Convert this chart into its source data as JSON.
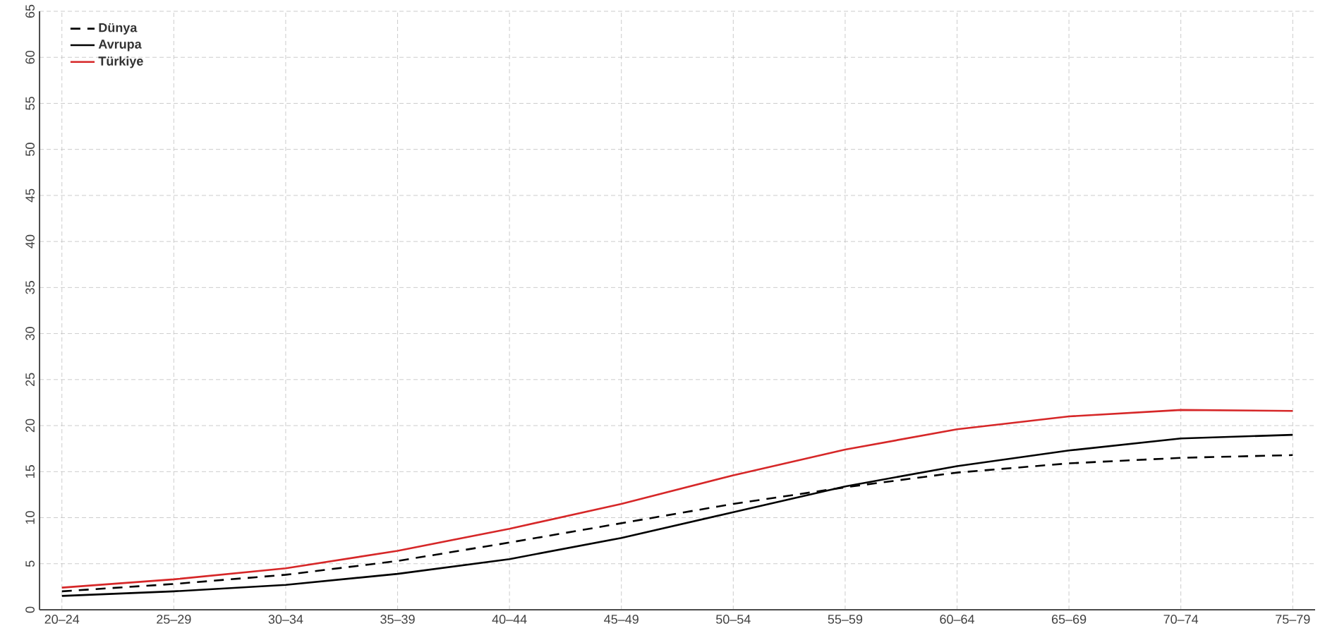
{
  "chart_data": {
    "type": "line",
    "categories": [
      "20–24",
      "25–29",
      "30–34",
      "35–39",
      "40–44",
      "45–49",
      "50–54",
      "55–59",
      "60–64",
      "65–69",
      "70–74",
      "75–79"
    ],
    "series": [
      {
        "name": "Dünya",
        "color": "#000000",
        "line_style": "dashed",
        "values": [
          2.0,
          2.8,
          3.8,
          5.3,
          7.3,
          9.4,
          11.5,
          13.3,
          14.9,
          15.9,
          16.5,
          16.8
        ]
      },
      {
        "name": "Avrupa",
        "color": "#000000",
        "line_style": "solid",
        "values": [
          1.5,
          2.0,
          2.7,
          3.9,
          5.5,
          7.8,
          10.6,
          13.4,
          15.6,
          17.3,
          18.6,
          19.0
        ]
      },
      {
        "name": "Türkiye",
        "color": "#d62728",
        "line_style": "solid",
        "values": [
          2.4,
          3.3,
          4.5,
          6.4,
          8.8,
          11.5,
          14.6,
          17.4,
          19.6,
          21.0,
          21.7,
          21.6
        ]
      }
    ],
    "ylim": [
      0,
      65
    ],
    "yticks": [
      0,
      5,
      10,
      15,
      20,
      25,
      30,
      35,
      40,
      45,
      50,
      55,
      60,
      65
    ],
    "grid": true,
    "legend": "top left",
    "marker": "none"
  }
}
